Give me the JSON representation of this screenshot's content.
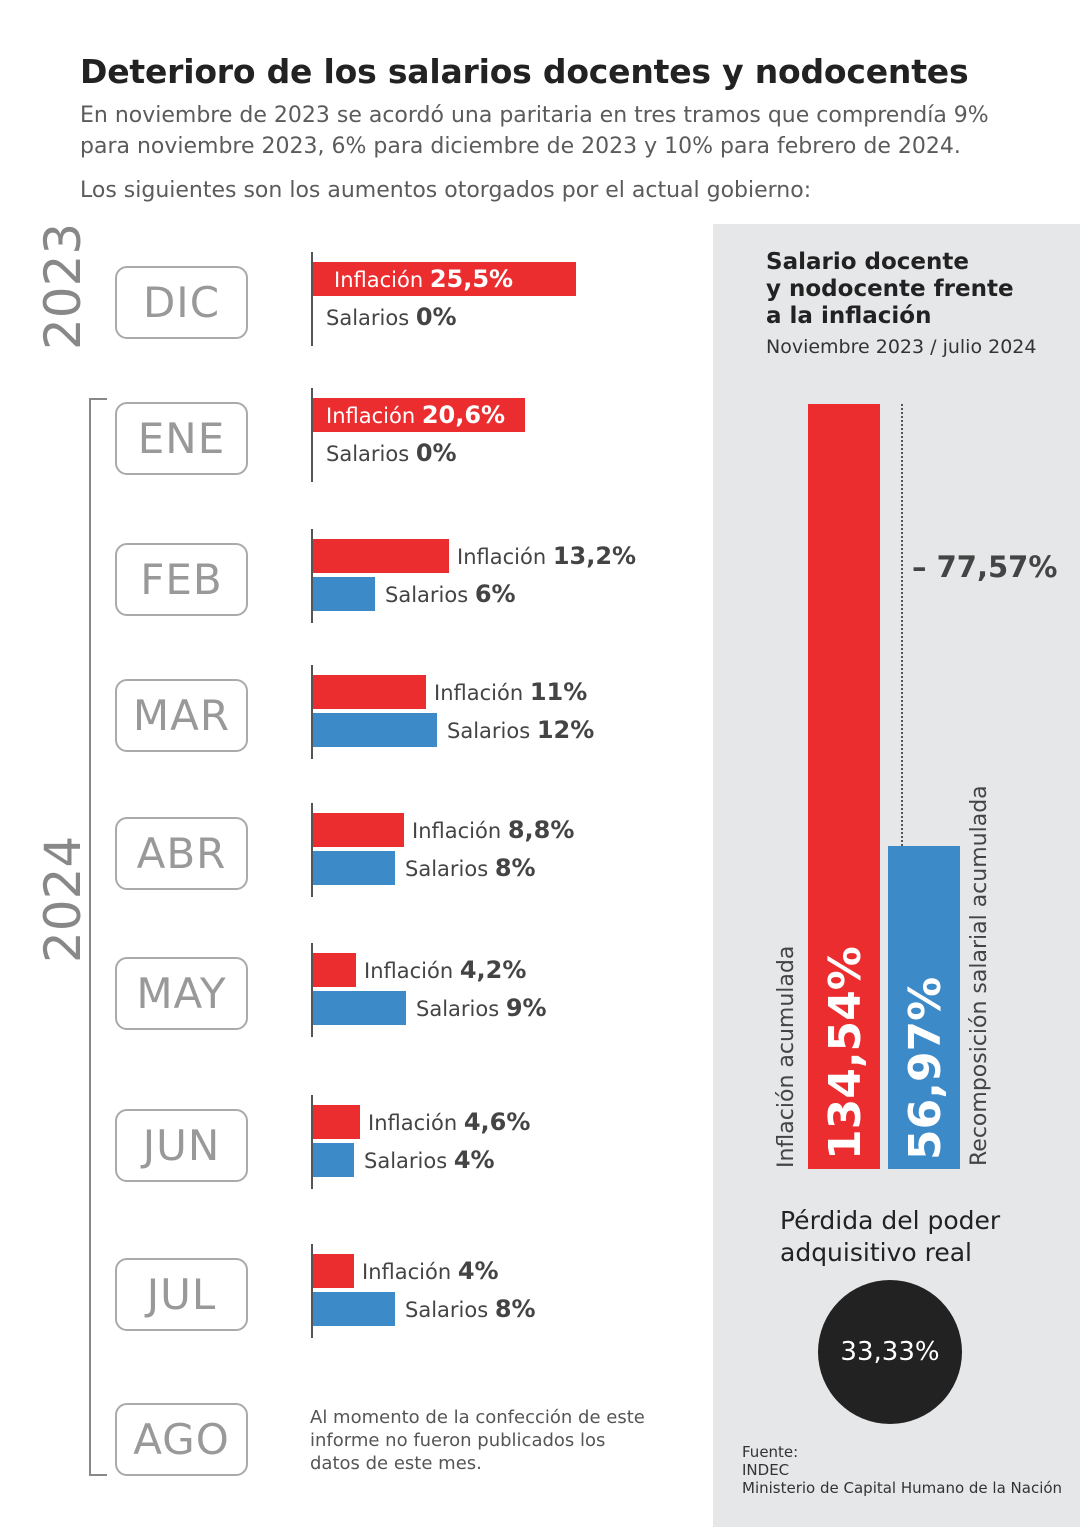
{
  "header": {
    "title": "Deterioro de los salarios docentes y nodocentes",
    "paragraph_line1": "En noviembre de 2023 se acordó una paritaria en tres tramos que comprendía 9%",
    "paragraph_line2": "para noviembre 2023, 6% para diciembre de 2023 y 10% para febrero de 2024.",
    "paragraph_line3": "Los siguientes son los aumentos otorgados por el actual gobierno:"
  },
  "years": {
    "y2023": "2023",
    "y2024": "2024"
  },
  "labels": {
    "inflacion": "Inflación",
    "salarios": "Salarios"
  },
  "colors": {
    "inflacion": "#ec2d2f",
    "salarios": "#3d8ac9",
    "panel": "#e6e7e9"
  },
  "chart_data": [
    {
      "type": "bar",
      "categories": [
        "DIC",
        "ENE",
        "FEB",
        "MAR",
        "ABR",
        "MAY",
        "JUN",
        "JUL",
        "AGO"
      ],
      "series": [
        {
          "name": "Inflación",
          "values": [
            25.5,
            20.6,
            13.2,
            11,
            8.8,
            4.2,
            4.6,
            4,
            null
          ],
          "labels": [
            "25,5%",
            "20,6%",
            "13,2%",
            "11%",
            "8,8%",
            "4,2%",
            "4,6%",
            "4%",
            ""
          ]
        },
        {
          "name": "Salarios",
          "values": [
            0,
            0,
            6,
            12,
            8,
            9,
            4,
            8,
            null
          ],
          "labels": [
            "0%",
            "0%",
            "6%",
            "12%",
            "8%",
            "9%",
            "4%",
            "8%",
            ""
          ]
        }
      ],
      "ago_note": "Al momento de la confección de este informe no fueron publicados los datos de este mes."
    },
    {
      "type": "bar",
      "title": "Salario docente y nodocente frente a la inflación",
      "subtitle": "Noviembre 2023 / julio 2024",
      "categories": [
        "Inflación acumulada",
        "Recomposición salarial acumulada"
      ],
      "values": [
        134.54,
        56.97
      ],
      "value_labels": [
        "134,54%",
        "56,97%"
      ],
      "difference_label": "– 77,57%"
    }
  ],
  "panel": {
    "title_line1": "Salario docente",
    "title_line2": "y nodocente frente",
    "title_line3": "a la inflación",
    "subtitle": "Noviembre 2023 / julio 2024",
    "infl_label": "Inflación acumulada",
    "infl_value": "134,54%",
    "sal_label": "Recomposición salarial acumulada",
    "sal_value": "56,97%",
    "gap": "– 77,57%",
    "loss_line1": "Pérdida del poder",
    "loss_line2": "adquisitivo real",
    "loss_value": "33,33%"
  },
  "source": {
    "line1": "Fuente:",
    "line2": "INDEC",
    "line3": "Ministerio de Capital Humano de la Nación"
  }
}
